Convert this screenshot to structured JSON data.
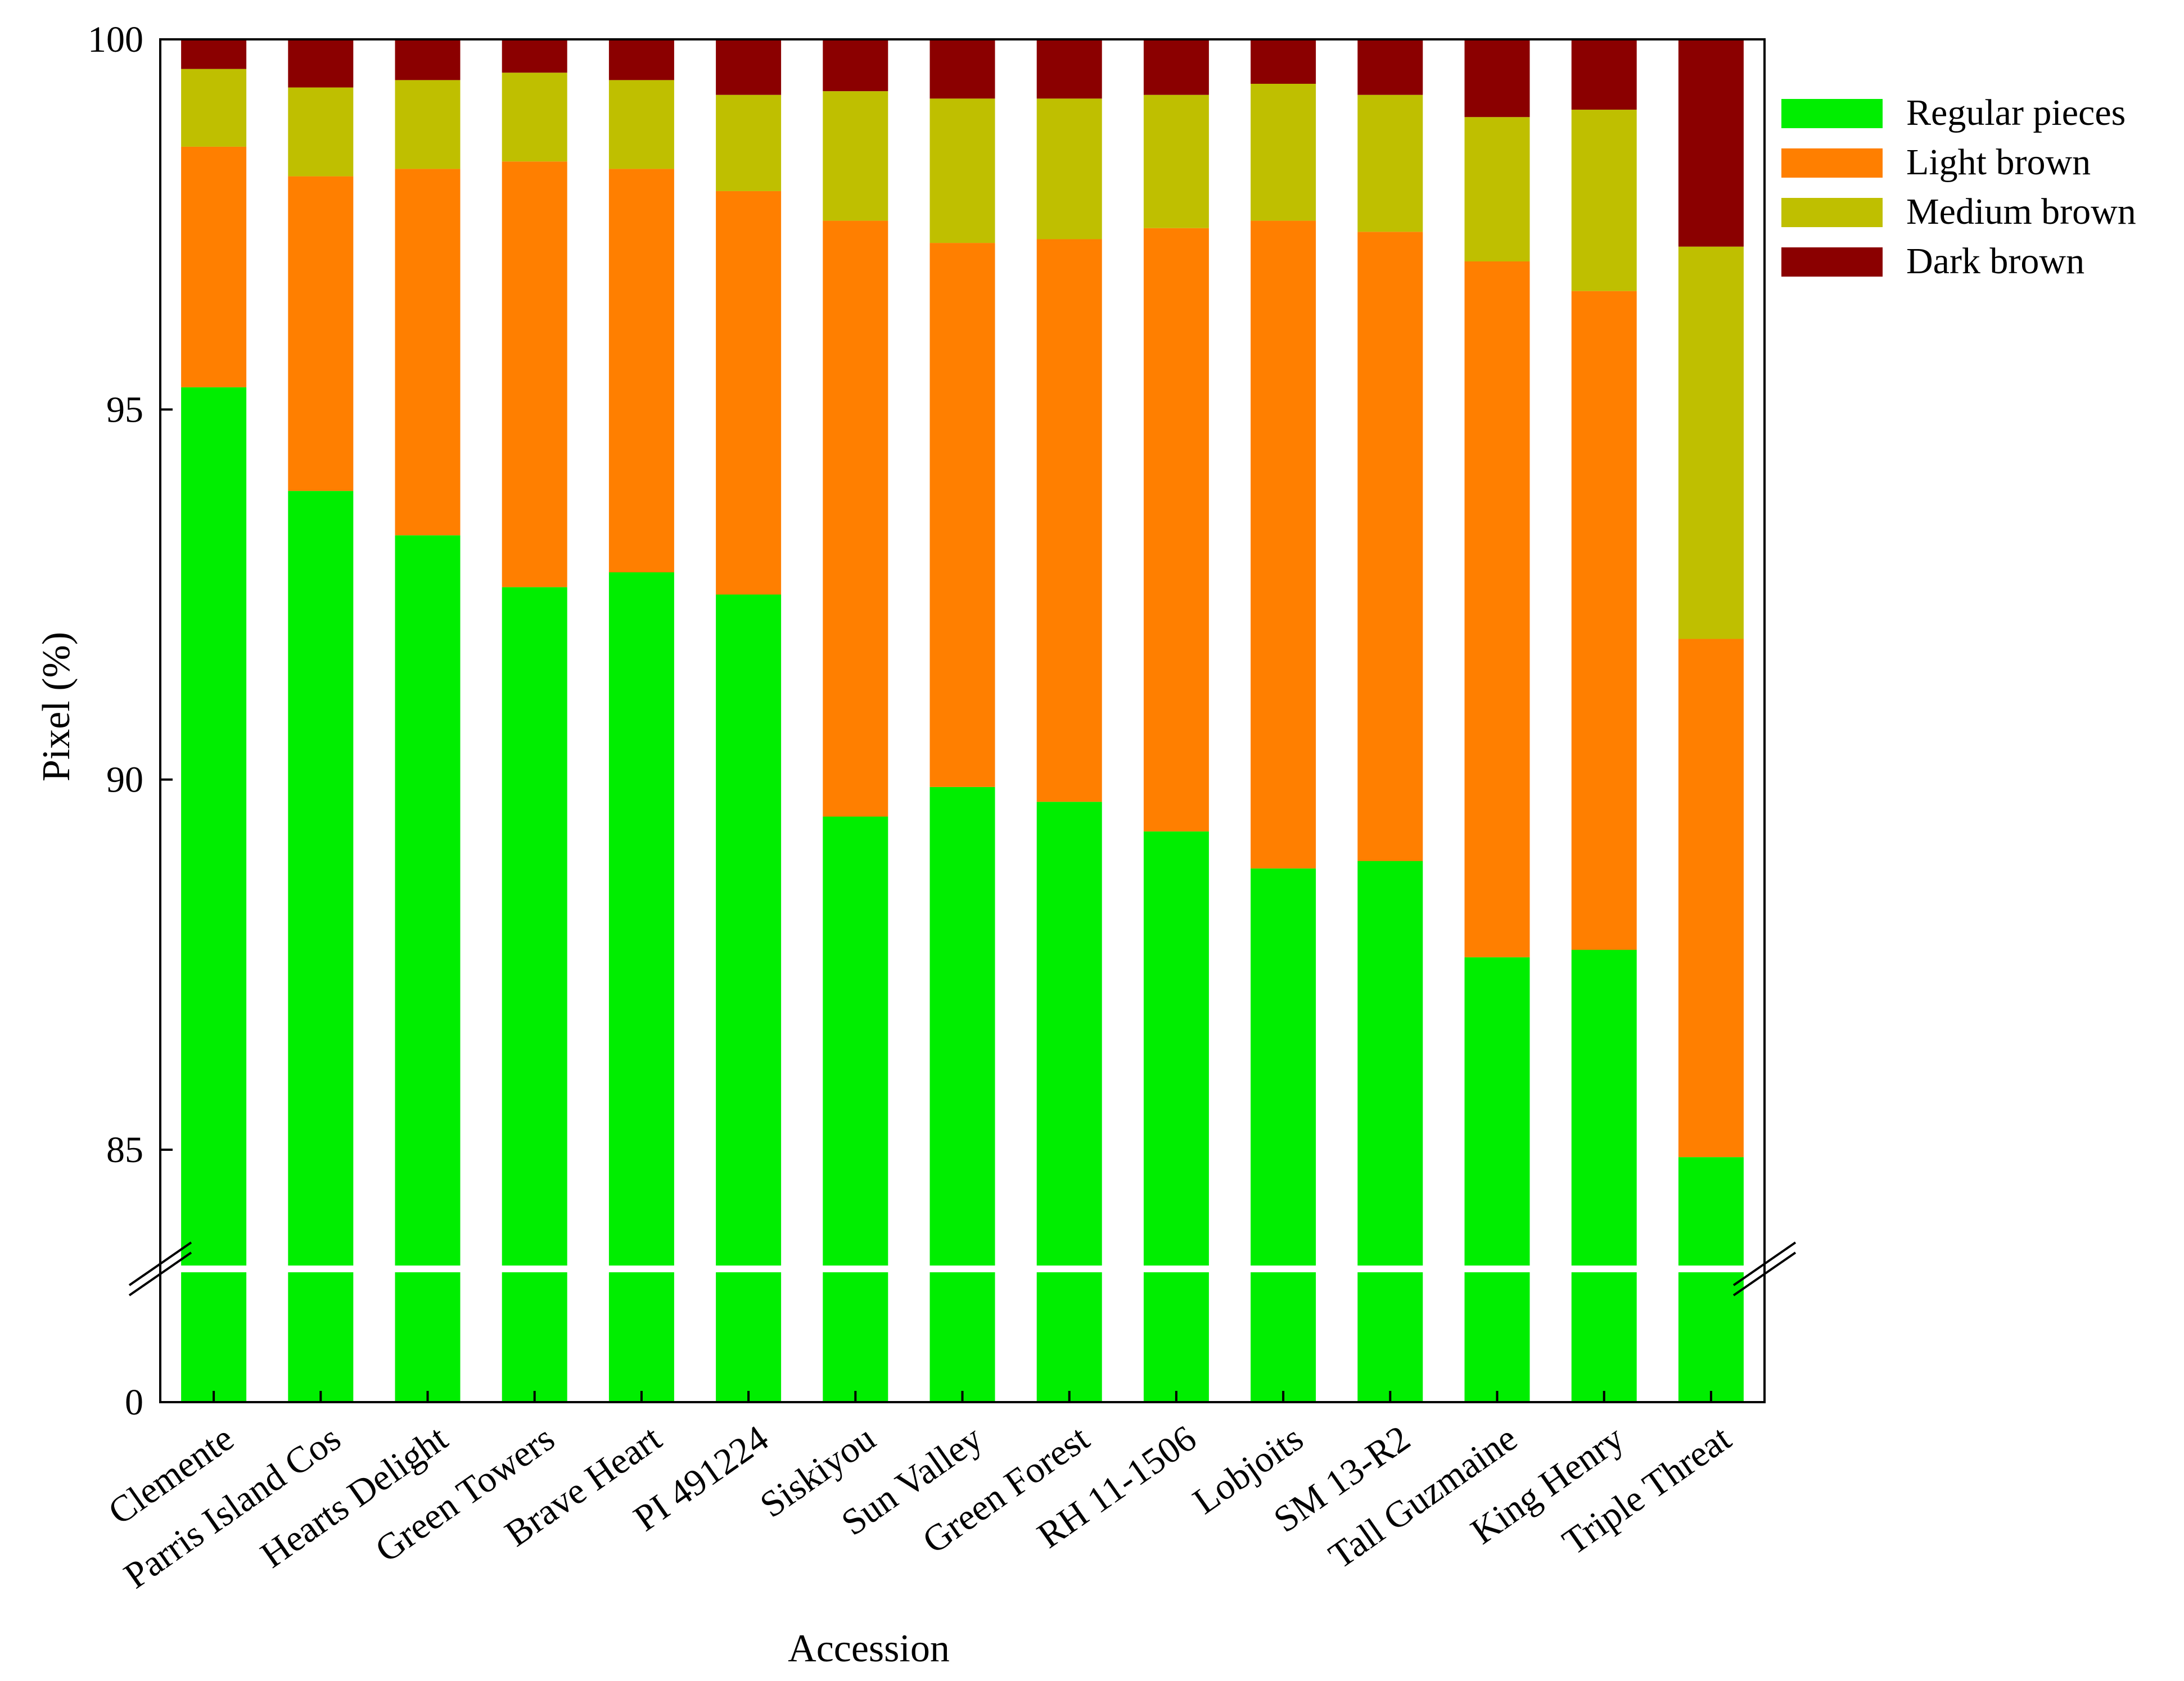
{
  "chart_data": {
    "type": "bar",
    "stacked": true,
    "title": "",
    "xlabel": "Accession",
    "ylabel": "Pixel (%)",
    "ylim": [
      0,
      100
    ],
    "axis_break": {
      "from": 0,
      "to": 83.5
    },
    "yticks": [
      {
        "value": 100,
        "label": "100"
      },
      {
        "value": 95,
        "label": "95"
      },
      {
        "value": 90,
        "label": "90"
      },
      {
        "value": 85,
        "label": "85"
      },
      {
        "value": 0,
        "label": "0"
      }
    ],
    "categories": [
      "Clemente",
      "Parris Island Cos",
      "Hearts Delight",
      "Green Towers",
      "Brave Heart",
      "PI 491224",
      "Siskiyou",
      "Sun Valley",
      "Green Forest",
      "RH 11-1506",
      "Lobjoits",
      "SM 13-R2",
      "Tall Guzmaine",
      "King Henry",
      "Triple Threat"
    ],
    "series": [
      {
        "name": "Regular pieces",
        "color": "#00ee00",
        "values": [
          95.3,
          93.9,
          93.3,
          92.6,
          92.8,
          92.5,
          89.5,
          89.9,
          89.7,
          89.3,
          88.8,
          88.9,
          87.6,
          87.7,
          84.9
        ]
      },
      {
        "name": "Light brown",
        "color": "#ff7f00",
        "values": [
          3.25,
          4.25,
          4.95,
          5.75,
          5.45,
          5.45,
          8.05,
          7.35,
          7.6,
          8.15,
          8.75,
          8.5,
          9.4,
          8.9,
          7.0
        ]
      },
      {
        "name": "Medium brown",
        "color": "#bfbf00",
        "values": [
          1.05,
          1.2,
          1.2,
          1.2,
          1.2,
          1.3,
          1.75,
          1.95,
          1.9,
          1.8,
          1.85,
          1.85,
          1.95,
          2.45,
          5.3
        ]
      },
      {
        "name": "Dark brown",
        "color": "#8b0000",
        "values": [
          0.4,
          0.65,
          0.55,
          0.45,
          0.55,
          0.75,
          0.7,
          0.8,
          0.8,
          0.75,
          0.6,
          0.75,
          1.05,
          0.95,
          2.8
        ]
      }
    ],
    "legend_position": "top-right"
  }
}
